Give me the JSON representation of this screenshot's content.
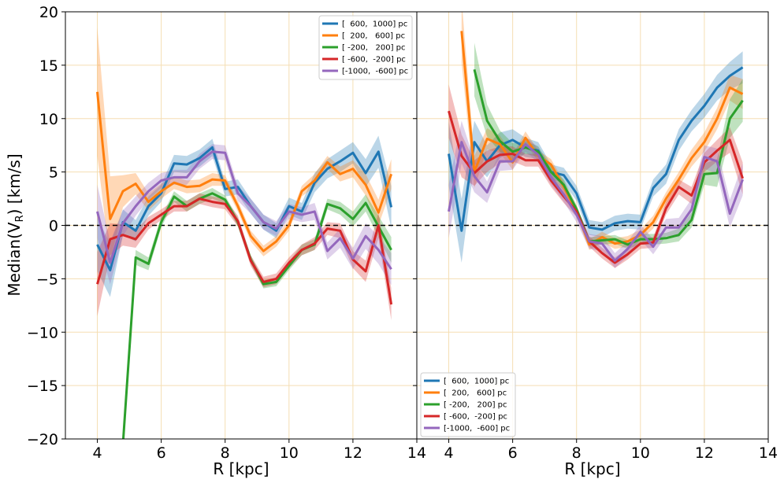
{
  "chart_data": {
    "type": "line",
    "ylabel": "Median(V_R) [km/s]",
    "xlabel": "R [kpc]",
    "xlim": [
      3,
      14
    ],
    "ylim": [
      -20,
      20
    ],
    "grid": true,
    "x_ticks": [
      4,
      6,
      8,
      10,
      12,
      14
    ],
    "y_ticks": [
      -20,
      -15,
      -10,
      -5,
      0,
      5,
      10,
      15,
      20
    ],
    "reference_line": 0,
    "legend_labels": [
      "[  600,  1000] pc",
      "[  200,   600] pc",
      "[ -200,   200] pc",
      "[ -600,  -200] pc",
      "[-1000,  -600] pc"
    ],
    "series_colors": [
      "#1f77b4",
      "#ff7f0e",
      "#2ca02c",
      "#d62728",
      "#9467bd"
    ],
    "panels": [
      {
        "name": "left",
        "legend_position": "top-right",
        "x": [
          4.0,
          4.4,
          4.8,
          5.2,
          5.6,
          6.0,
          6.4,
          6.8,
          7.2,
          7.6,
          8.0,
          8.4,
          8.8,
          9.2,
          9.6,
          10.0,
          10.4,
          10.8,
          11.2,
          11.6,
          12.0,
          12.4,
          12.8,
          13.2
        ],
        "series": [
          {
            "name": "[  600,  1000] pc",
            "values": [
              -1.8,
              -4.2,
              0.3,
              -0.5,
              1.8,
              3.0,
              5.8,
              5.7,
              6.3,
              7.3,
              3.4,
              3.6,
              1.8,
              0.3,
              -0.5,
              1.8,
              1.3,
              4.0,
              5.3,
              6.0,
              6.8,
              4.9,
              6.9,
              1.7
            ],
            "band": [
              2.5,
              2.5,
              1.2,
              1.0,
              0.9,
              0.8,
              0.8,
              0.8,
              0.8,
              0.8,
              0.7,
              0.7,
              0.7,
              0.7,
              0.7,
              0.8,
              0.8,
              0.9,
              0.9,
              1.0,
              1.0,
              1.3,
              1.5,
              2.0
            ]
          },
          {
            "name": "[  200,   600] pc",
            "values": [
              12.5,
              0.6,
              3.2,
              3.9,
              2.2,
              3.2,
              4.0,
              3.6,
              3.7,
              4.3,
              4.2,
              1.8,
              -1.0,
              -2.4,
              -1.5,
              0.0,
              3.2,
              4.2,
              5.9,
              4.8,
              5.3,
              3.8,
              1.2,
              4.8
            ],
            "band": [
              6.0,
              4.0,
              1.5,
              1.0,
              0.8,
              0.7,
              0.6,
              0.6,
              0.6,
              0.6,
              0.5,
              0.5,
              0.5,
              0.5,
              0.5,
              0.5,
              0.5,
              0.6,
              0.6,
              0.7,
              0.8,
              1.0,
              1.2,
              1.4
            ]
          },
          {
            "name": "[ -200,   200] pc",
            "values": [
              null,
              null,
              -20.5,
              -3.0,
              -3.6,
              0.3,
              2.7,
              1.8,
              2.5,
              3.0,
              2.4,
              0.3,
              -3.2,
              -5.5,
              -5.3,
              -3.8,
              -2.3,
              -1.8,
              2.0,
              1.6,
              0.6,
              2.1,
              -0.1,
              -2.3
            ],
            "band": [
              0,
              0,
              0.8,
              0.7,
              0.6,
              0.5,
              0.5,
              0.5,
              0.5,
              0.5,
              0.4,
              0.4,
              0.4,
              0.4,
              0.4,
              0.4,
              0.5,
              0.5,
              0.5,
              0.6,
              0.7,
              0.8,
              1.0,
              1.2
            ]
          },
          {
            "name": "[ -600,  -200] pc",
            "values": [
              -5.5,
              -1.3,
              -0.9,
              -1.3,
              0.2,
              1.0,
              1.8,
              1.8,
              2.5,
              2.2,
              2.0,
              0.4,
              -3.3,
              -5.3,
              -5.0,
              -3.5,
              -2.3,
              -1.7,
              -0.3,
              -0.5,
              -3.2,
              -4.3,
              0.0,
              -7.4
            ],
            "band": [
              3.0,
              1.5,
              1.0,
              0.8,
              0.6,
              0.5,
              0.5,
              0.5,
              0.5,
              0.5,
              0.5,
              0.5,
              0.5,
              0.5,
              0.5,
              0.5,
              0.5,
              0.6,
              0.6,
              0.7,
              0.8,
              1.0,
              1.2,
              1.5
            ]
          },
          {
            "name": "[-1000,  -600] pc",
            "values": [
              1.3,
              -3.5,
              0.2,
              1.8,
              3.2,
              4.2,
              4.5,
              4.5,
              6.0,
              6.9,
              6.8,
              3.0,
              1.8,
              0.3,
              -0.3,
              1.3,
              1.0,
              1.3,
              -2.4,
              -1.2,
              -3.1,
              -1.0,
              -2.3,
              -4.1
            ],
            "band": [
              2.5,
              2.0,
              1.2,
              0.9,
              0.8,
              0.7,
              0.7,
              0.7,
              0.7,
              0.7,
              0.7,
              0.7,
              0.7,
              0.7,
              0.7,
              0.7,
              0.7,
              0.8,
              0.8,
              0.9,
              1.0,
              1.2,
              1.3,
              1.5
            ]
          }
        ]
      },
      {
        "name": "right",
        "legend_position": "lower-left",
        "x": [
          4.0,
          4.4,
          4.8,
          5.2,
          5.6,
          6.0,
          6.4,
          6.8,
          7.2,
          7.6,
          8.0,
          8.4,
          8.8,
          9.2,
          9.6,
          10.0,
          10.4,
          10.8,
          11.2,
          11.6,
          12.0,
          12.4,
          12.8,
          13.2
        ],
        "series": [
          {
            "name": "[  600,  1000] pc",
            "values": [
              6.7,
              -0.5,
              7.8,
              6.0,
              7.5,
              8.0,
              7.3,
              7.0,
              5.0,
              4.7,
              3.0,
              -0.2,
              -0.4,
              0.2,
              0.4,
              0.3,
              3.5,
              4.8,
              8.0,
              9.8,
              11.2,
              12.9,
              14.0,
              14.8
            ],
            "band": [
              3.0,
              3.0,
              2.0,
              1.5,
              1.2,
              1.0,
              0.9,
              0.8,
              0.7,
              0.7,
              0.7,
              0.7,
              0.7,
              0.7,
              0.7,
              0.7,
              0.8,
              0.9,
              1.0,
              1.0,
              1.1,
              1.2,
              1.3,
              1.5
            ]
          },
          {
            "name": "[  200,   600] pc",
            "values": [
              null,
              18.2,
              5.0,
              8.1,
              7.6,
              5.9,
              8.2,
              6.5,
              5.7,
              3.6,
              1.3,
              -1.8,
              -1.1,
              -1.7,
              -1.5,
              -0.9,
              0.3,
              2.5,
              4.3,
              6.3,
              7.8,
              10.0,
              12.9,
              12.3
            ],
            "band": [
              0,
              3.0,
              1.5,
              1.0,
              0.8,
              0.7,
              0.6,
              0.5,
              0.5,
              0.5,
              0.5,
              0.5,
              0.5,
              0.5,
              0.5,
              0.5,
              0.6,
              0.6,
              0.7,
              0.8,
              0.9,
              1.0,
              1.2,
              1.4
            ]
          },
          {
            "name": "[ -200,   200] pc",
            "values": [
              null,
              null,
              14.6,
              9.8,
              7.9,
              6.9,
              7.3,
              6.9,
              5.0,
              3.8,
              1.5,
              -1.5,
              -1.4,
              -1.3,
              -1.8,
              -1.3,
              -1.3,
              -1.2,
              -0.9,
              0.5,
              4.8,
              4.9,
              10.0,
              11.7
            ],
            "band": [
              0,
              0,
              2.5,
              1.5,
              1.0,
              0.8,
              0.6,
              0.5,
              0.5,
              0.5,
              0.4,
              0.4,
              0.4,
              0.4,
              0.4,
              0.5,
              0.5,
              0.5,
              0.6,
              0.7,
              1.0,
              1.3,
              1.8,
              2.0
            ]
          },
          {
            "name": "[ -600,  -200] pc",
            "values": [
              10.7,
              6.5,
              4.9,
              6.0,
              6.6,
              6.7,
              6.1,
              6.1,
              4.2,
              2.7,
              1.3,
              -1.5,
              -2.6,
              -3.5,
              -2.7,
              -1.7,
              -1.6,
              1.6,
              3.6,
              2.8,
              5.9,
              7.0,
              8.0,
              4.4
            ],
            "band": [
              2.5,
              2.0,
              1.2,
              1.0,
              0.8,
              0.7,
              0.6,
              0.6,
              0.6,
              0.6,
              0.5,
              0.5,
              0.5,
              0.5,
              0.5,
              0.5,
              0.5,
              0.6,
              0.7,
              0.8,
              0.9,
              1.0,
              1.2,
              1.5
            ]
          },
          {
            "name": "[-1000,  -600] pc",
            "values": [
              1.3,
              7.8,
              4.6,
              3.1,
              6.0,
              6.0,
              7.6,
              6.6,
              4.5,
              2.9,
              1.0,
              -1.5,
              -1.7,
              -3.3,
              -2.2,
              -0.6,
              -2.0,
              -0.2,
              -0.2,
              1.5,
              6.4,
              6.0,
              1.1,
              4.3
            ],
            "band": [
              2.5,
              2.0,
              1.5,
              1.0,
              0.9,
              0.8,
              0.7,
              0.7,
              0.7,
              0.7,
              0.7,
              0.7,
              0.7,
              0.7,
              0.7,
              0.7,
              0.7,
              0.8,
              0.9,
              1.0,
              1.1,
              1.2,
              1.3,
              1.5
            ]
          }
        ]
      }
    ]
  }
}
